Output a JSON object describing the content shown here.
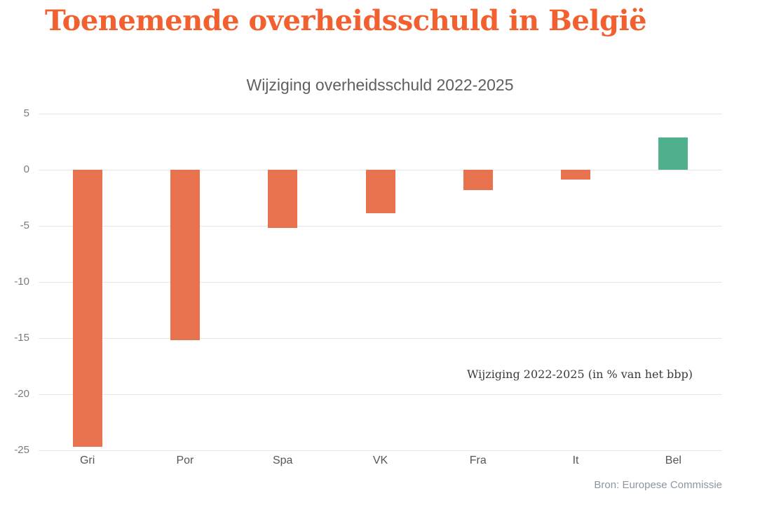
{
  "page": {
    "title": "Toenemende overheidsschuld in België",
    "source": "Bron: Europese Commissie"
  },
  "chart_data": {
    "type": "bar",
    "title": "Wijziging overheidsschuld 2022-2025",
    "annotation": "Wijziging 2022-2025 (in % van het bbp)",
    "categories": [
      "Gri",
      "Por",
      "Spa",
      "VK",
      "Fra",
      "It",
      "Bel"
    ],
    "values": [
      -24.7,
      -15.2,
      -5.2,
      -3.9,
      -1.8,
      -0.9,
      2.9
    ],
    "bar_colors": [
      "#e8724e",
      "#e8724e",
      "#e8724e",
      "#e8724e",
      "#e8724e",
      "#e8724e",
      "#4fb18c"
    ],
    "ylim": [
      -25,
      5
    ],
    "yticks": [
      5,
      0,
      -5,
      -10,
      -15,
      -20,
      -25
    ],
    "grid": true,
    "legend_position": "none",
    "colors": {
      "negative_bar": "#e8724e",
      "highlight_positive_bar": "#4fb18c",
      "title_accent": "#f2602f"
    }
  }
}
